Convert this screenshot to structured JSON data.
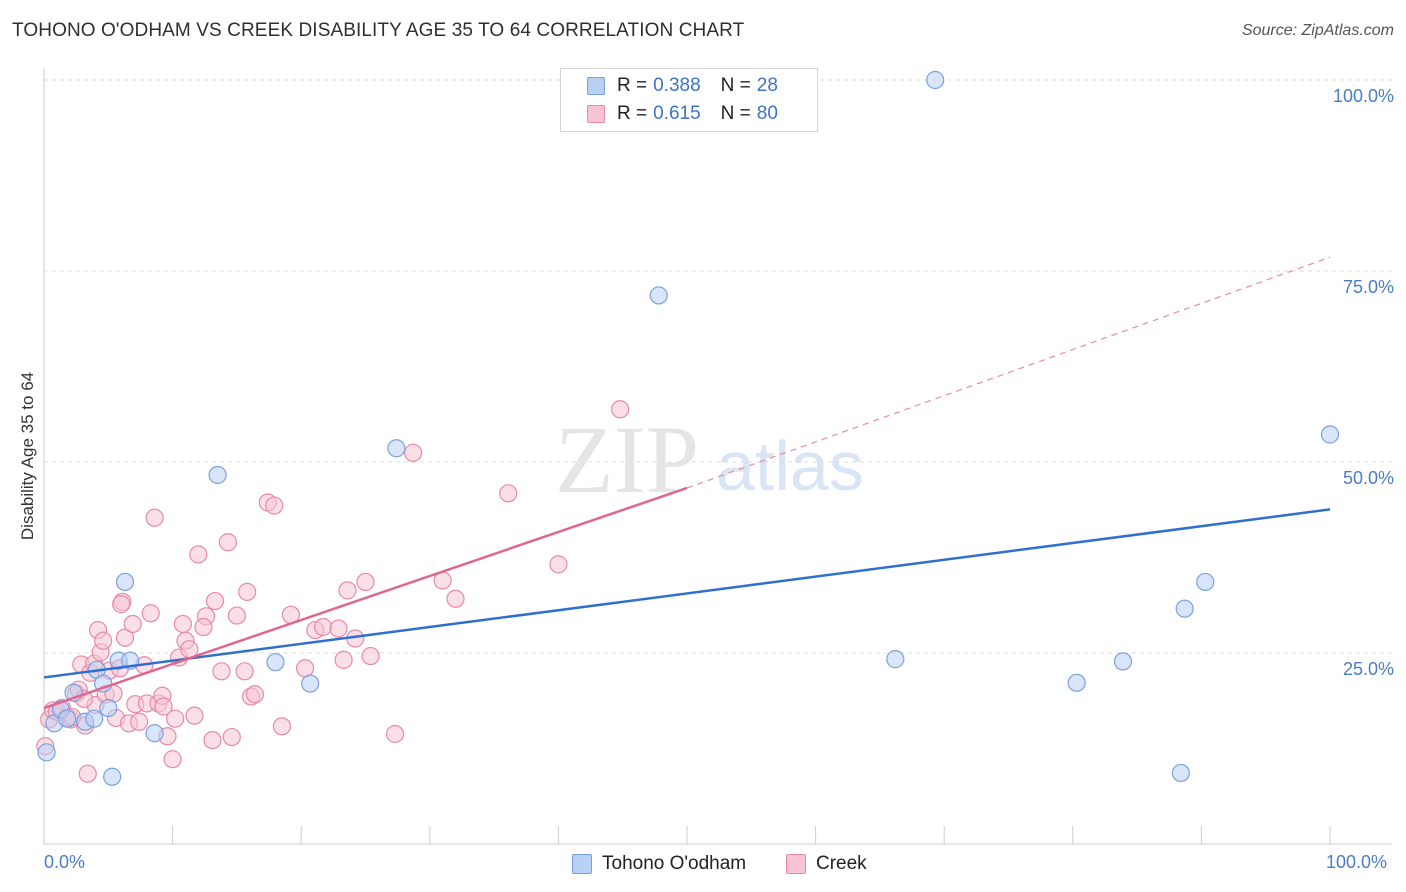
{
  "title": "TOHONO O'ODHAM VS CREEK DISABILITY AGE 35 TO 64 CORRELATION CHART",
  "source": "Source: ZipAtlas.com",
  "watermark": {
    "zip": "ZIP",
    "atlas": "atlas"
  },
  "legend": {
    "rows": [
      {
        "r_label": "R = ",
        "r_value": "0.388",
        "n_label": "N = ",
        "n_value": "28"
      },
      {
        "r_label": "R = ",
        "r_value": "0.615",
        "n_label": "N = ",
        "n_value": "80"
      }
    ],
    "series_names": [
      "Tohono O'odham",
      "Creek"
    ]
  },
  "axes": {
    "y_label": "Disability Age 35 to 64",
    "y_ticks": [
      "100.0%",
      "75.0%",
      "50.0%",
      "25.0%"
    ],
    "x_ticks": [
      "0.0%",
      "100.0%"
    ]
  },
  "colors": {
    "tohono_fill": "#b9d0f5",
    "tohono_stroke": "#7aa1dc",
    "tohono_line": "#2f6fcf",
    "creek_fill": "#f8c4d4",
    "creek_stroke": "#e88aa7",
    "creek_line": "#e0658f"
  },
  "chart_data": {
    "type": "scatter",
    "title": "TOHONO O'ODHAM VS CREEK DISABILITY AGE 35 TO 64 CORRELATION CHART",
    "xlabel": "",
    "ylabel": "Disability Age 35 to 64",
    "xlim": [
      0,
      100
    ],
    "ylim": [
      0,
      100
    ],
    "series": [
      {
        "name": "Tohono O'odham",
        "r": 0.388,
        "n": 28,
        "trend": {
          "x0": 0,
          "y0": 21.8,
          "x1": 100,
          "y1": 43.8
        },
        "points": [
          [
            0.2,
            12.0
          ],
          [
            0.8,
            15.8
          ],
          [
            1.3,
            17.6
          ],
          [
            1.8,
            16.4
          ],
          [
            2.3,
            19.8
          ],
          [
            3.2,
            16.0
          ],
          [
            3.9,
            16.4
          ],
          [
            4.1,
            22.8
          ],
          [
            4.6,
            21.0
          ],
          [
            5.0,
            17.8
          ],
          [
            5.3,
            8.8
          ],
          [
            5.8,
            24.0
          ],
          [
            6.3,
            34.3
          ],
          [
            6.7,
            24.0
          ],
          [
            8.6,
            14.5
          ],
          [
            13.5,
            48.3
          ],
          [
            18.0,
            23.8
          ],
          [
            20.7,
            21.0
          ],
          [
            27.4,
            51.8
          ],
          [
            47.8,
            71.8
          ],
          [
            66.2,
            24.2
          ],
          [
            69.3,
            100.0
          ],
          [
            80.3,
            21.1
          ],
          [
            83.9,
            23.9
          ],
          [
            88.4,
            9.3
          ],
          [
            88.7,
            30.8
          ],
          [
            90.3,
            34.3
          ],
          [
            100.0,
            53.6
          ]
        ]
      },
      {
        "name": "Creek",
        "r": 0.615,
        "n": 80,
        "trend": {
          "x0": 0,
          "y0": 17.8,
          "x1": 50,
          "y1": 46.6
        },
        "trend_extension": {
          "x0": 50,
          "y0": 46.6,
          "x1": 100,
          "y1": 76.8
        },
        "points": [
          [
            0.1,
            12.8
          ],
          [
            0.4,
            16.3
          ],
          [
            0.7,
            17.5
          ],
          [
            1.0,
            17.3
          ],
          [
            1.4,
            17.8
          ],
          [
            1.8,
            16.6
          ],
          [
            2.1,
            16.3
          ],
          [
            2.5,
            19.7
          ],
          [
            2.7,
            20.2
          ],
          [
            2.9,
            23.5
          ],
          [
            3.2,
            15.5
          ],
          [
            3.4,
            9.2
          ],
          [
            3.6,
            22.4
          ],
          [
            3.9,
            23.6
          ],
          [
            4.0,
            18.2
          ],
          [
            4.2,
            28.0
          ],
          [
            4.4,
            25.1
          ],
          [
            4.6,
            26.6
          ],
          [
            4.8,
            19.6
          ],
          [
            5.1,
            22.7
          ],
          [
            5.4,
            19.7
          ],
          [
            5.6,
            16.5
          ],
          [
            5.9,
            23.0
          ],
          [
            6.1,
            31.7
          ],
          [
            6.3,
            27.0
          ],
          [
            6.6,
            15.8
          ],
          [
            6.9,
            28.8
          ],
          [
            7.1,
            18.3
          ],
          [
            7.4,
            16.0
          ],
          [
            7.8,
            23.4
          ],
          [
            8.0,
            18.4
          ],
          [
            8.3,
            30.2
          ],
          [
            8.6,
            42.7
          ],
          [
            8.9,
            18.4
          ],
          [
            9.2,
            19.4
          ],
          [
            9.6,
            14.1
          ],
          [
            10.0,
            11.1
          ],
          [
            10.2,
            16.4
          ],
          [
            10.5,
            24.4
          ],
          [
            10.8,
            28.8
          ],
          [
            11.0,
            26.6
          ],
          [
            11.3,
            25.5
          ],
          [
            11.7,
            16.8
          ],
          [
            12.0,
            37.9
          ],
          [
            12.6,
            29.8
          ],
          [
            13.1,
            13.6
          ],
          [
            13.3,
            31.8
          ],
          [
            13.8,
            22.6
          ],
          [
            14.3,
            39.5
          ],
          [
            14.6,
            14.0
          ],
          [
            15.0,
            29.9
          ],
          [
            15.6,
            22.6
          ],
          [
            15.8,
            33.0
          ],
          [
            16.1,
            19.3
          ],
          [
            16.4,
            19.6
          ],
          [
            17.4,
            44.7
          ],
          [
            17.9,
            44.3
          ],
          [
            18.5,
            15.4
          ],
          [
            19.2,
            30.0
          ],
          [
            20.3,
            23.0
          ],
          [
            21.1,
            28.0
          ],
          [
            21.7,
            28.4
          ],
          [
            22.9,
            28.2
          ],
          [
            23.3,
            24.1
          ],
          [
            23.6,
            33.2
          ],
          [
            24.2,
            26.9
          ],
          [
            25.0,
            34.3
          ],
          [
            25.4,
            24.6
          ],
          [
            27.3,
            14.4
          ],
          [
            28.7,
            51.2
          ],
          [
            31.0,
            34.5
          ],
          [
            32.0,
            32.1
          ],
          [
            36.1,
            45.9
          ],
          [
            40.0,
            36.6
          ],
          [
            44.8,
            56.9
          ],
          [
            12.4,
            28.4
          ],
          [
            9.3,
            18.0
          ],
          [
            6.0,
            31.4
          ],
          [
            3.1,
            19.0
          ],
          [
            2.2,
            16.6
          ]
        ]
      }
    ]
  }
}
